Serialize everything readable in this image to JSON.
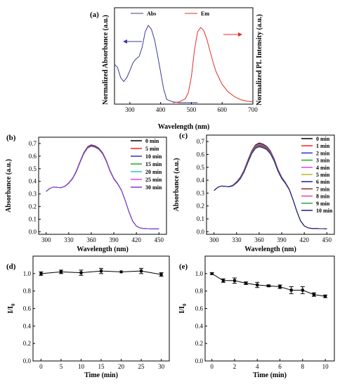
{
  "chart_data": [
    {
      "panel": "(a)",
      "type": "line",
      "xlabel": "Wavelength (nm)",
      "ylabel_left": "Normalized Absorbance (a.u.)",
      "ylabel_right": "Normalized PL Intensity (a.u.)",
      "xlim": [
        250,
        700
      ],
      "xticks": [
        300,
        400,
        500,
        600,
        700
      ],
      "legend_position": "top-center",
      "series": [
        {
          "name": "Abs",
          "color": "#3b3ba0",
          "axis": "left",
          "x": [
            250,
            260,
            270,
            280,
            290,
            300,
            310,
            320,
            330,
            340,
            350,
            360,
            370,
            380,
            390,
            400,
            410,
            420,
            440,
            460,
            480,
            500,
            520
          ],
          "y": [
            0.5,
            0.46,
            0.33,
            0.28,
            0.33,
            0.42,
            0.52,
            0.57,
            0.6,
            0.72,
            0.92,
            1.0,
            0.95,
            0.82,
            0.62,
            0.4,
            0.18,
            0.05,
            0.02,
            0.01,
            0.01,
            0.01,
            0.01
          ]
        },
        {
          "name": "Em",
          "color": "#e0302a",
          "axis": "right",
          "x": [
            440,
            460,
            480,
            490,
            500,
            510,
            520,
            530,
            540,
            550,
            560,
            570,
            580,
            600,
            620,
            640,
            660,
            680,
            700
          ],
          "y": [
            0.01,
            0.02,
            0.06,
            0.14,
            0.35,
            0.7,
            0.94,
            1.0,
            0.96,
            0.85,
            0.7,
            0.55,
            0.42,
            0.25,
            0.15,
            0.09,
            0.05,
            0.03,
            0.02
          ]
        }
      ]
    },
    {
      "panel": "(b)",
      "type": "line",
      "xlabel": "Wavelength (nm)",
      "ylabel": "Absorbance (a.u.)",
      "xlim": [
        290,
        460
      ],
      "ylim": [
        -0.02,
        0.75
      ],
      "xticks": [
        300,
        330,
        360,
        390,
        420,
        450
      ],
      "yticks": [
        0.0,
        0.1,
        0.2,
        0.3,
        0.4,
        0.5,
        0.6,
        0.7
      ],
      "legend_position": "top-right",
      "x": [
        300,
        305,
        310,
        315,
        320,
        325,
        330,
        335,
        340,
        345,
        350,
        355,
        360,
        365,
        370,
        375,
        380,
        385,
        390,
        395,
        400,
        405,
        410,
        415,
        420,
        425,
        430,
        435,
        440,
        445,
        450
      ],
      "base": [
        0.32,
        0.345,
        0.355,
        0.352,
        0.35,
        0.36,
        0.385,
        0.42,
        0.475,
        0.55,
        0.62,
        0.665,
        0.68,
        0.672,
        0.655,
        0.62,
        0.56,
        0.48,
        0.42,
        0.38,
        0.33,
        0.25,
        0.16,
        0.085,
        0.045,
        0.03,
        0.026,
        0.025,
        0.024,
        0.024,
        0.023
      ],
      "series": [
        {
          "name": "0 min",
          "color": "#000000",
          "delta": 0.01
        },
        {
          "name": "5 min",
          "color": "#ff2020",
          "delta": 0.006
        },
        {
          "name": "10 min",
          "color": "#2f2fd0",
          "delta": 0.003
        },
        {
          "name": "15 min",
          "color": "#22aa22",
          "delta": 0.001
        },
        {
          "name": "20 min",
          "color": "#20c8d8",
          "delta": 0.0
        },
        {
          "name": "25 min",
          "color": "#e040e0",
          "delta": -0.001
        },
        {
          "name": "30 min",
          "color": "#7a3ad0",
          "delta": -0.002
        }
      ]
    },
    {
      "panel": "(c)",
      "type": "line",
      "xlabel": "Wavelength (nm)",
      "ylabel": "Absorbance (a.u.)",
      "xlim": [
        290,
        460
      ],
      "ylim": [
        -0.02,
        0.75
      ],
      "xticks": [
        300,
        330,
        360,
        390,
        420,
        450
      ],
      "yticks": [
        0.0,
        0.1,
        0.2,
        0.3,
        0.4,
        0.5,
        0.6,
        0.7
      ],
      "legend_position": "top-right",
      "x": [
        300,
        305,
        310,
        315,
        320,
        325,
        330,
        335,
        340,
        345,
        350,
        355,
        360,
        365,
        370,
        375,
        380,
        385,
        390,
        395,
        400,
        405,
        410,
        415,
        420,
        425,
        430,
        435,
        440,
        445,
        450
      ],
      "base": [
        0.32,
        0.345,
        0.355,
        0.352,
        0.35,
        0.36,
        0.385,
        0.42,
        0.475,
        0.55,
        0.62,
        0.665,
        0.68,
        0.672,
        0.655,
        0.62,
        0.56,
        0.48,
        0.42,
        0.38,
        0.33,
        0.25,
        0.16,
        0.085,
        0.045,
        0.03,
        0.026,
        0.025,
        0.024,
        0.024,
        0.023
      ],
      "series": [
        {
          "name": "0 min",
          "color": "#000000",
          "delta": 0.01
        },
        {
          "name": "1 min",
          "color": "#ff2020",
          "delta": 0.006
        },
        {
          "name": "2 min",
          "color": "#2f2fd0",
          "delta": 0.003
        },
        {
          "name": "3 min",
          "color": "#22aa22",
          "delta": 0.0
        },
        {
          "name": "4 min",
          "color": "#e040e0",
          "delta": -0.003
        },
        {
          "name": "5 min",
          "color": "#b8b820",
          "delta": -0.006
        },
        {
          "name": "6 min",
          "color": "#20209a",
          "delta": -0.009
        },
        {
          "name": "7 min",
          "color": "#8a2a2a",
          "delta": -0.012
        },
        {
          "name": "8 min",
          "color": "#ff3a8a",
          "delta": -0.015
        },
        {
          "name": "9 min",
          "color": "#30a050",
          "delta": -0.018
        },
        {
          "name": "10 min",
          "color": "#1a1a8a",
          "delta": -0.022
        }
      ]
    },
    {
      "panel": "(d)",
      "type": "line",
      "xlabel": "Time (min)",
      "ylabel": "I/I",
      "ylabel_sub": "0",
      "xlim": [
        -2,
        32
      ],
      "ylim": [
        0.0,
        1.2
      ],
      "xticks": [
        0,
        5,
        10,
        15,
        20,
        25,
        30
      ],
      "yticks": [
        0.0,
        0.2,
        0.4,
        0.6,
        0.8,
        1.0
      ],
      "x": [
        0,
        5,
        10,
        15,
        20,
        25,
        30
      ],
      "y": [
        1.0,
        1.02,
        1.01,
        1.03,
        1.02,
        1.03,
        0.99
      ],
      "err": [
        0.02,
        0.02,
        0.03,
        0.03,
        0.0,
        0.03,
        0.02
      ]
    },
    {
      "panel": "(e)",
      "type": "line",
      "xlabel": "Time (min)",
      "ylabel": "I/I",
      "ylabel_sub": "0",
      "xlim": [
        -0.6,
        10.8
      ],
      "ylim": [
        0.0,
        1.2
      ],
      "xticks": [
        0,
        2,
        4,
        6,
        8,
        10
      ],
      "yticks": [
        0.0,
        0.2,
        0.4,
        0.6,
        0.8,
        1.0
      ],
      "x": [
        0,
        1,
        2,
        3,
        4,
        5,
        6,
        7,
        8,
        9,
        10
      ],
      "y": [
        1.0,
        0.92,
        0.92,
        0.89,
        0.87,
        0.86,
        0.85,
        0.81,
        0.81,
        0.76,
        0.74
      ],
      "err": [
        0.01,
        0.02,
        0.03,
        0.015,
        0.03,
        0.01,
        0.02,
        0.04,
        0.04,
        0.02,
        0.015
      ]
    }
  ]
}
